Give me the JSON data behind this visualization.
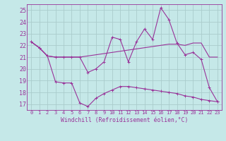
{
  "background_color": "#c5e8e8",
  "grid_color": "#aacccc",
  "line_color": "#993399",
  "xlabel": "Windchill (Refroidissement éolien,°C)",
  "ylim": [
    16.5,
    25.5
  ],
  "xlim": [
    -0.5,
    23.5
  ],
  "yticks": [
    17,
    18,
    19,
    20,
    21,
    22,
    23,
    24,
    25
  ],
  "xticks": [
    0,
    1,
    2,
    3,
    4,
    5,
    6,
    7,
    8,
    9,
    10,
    11,
    12,
    13,
    14,
    15,
    16,
    17,
    18,
    19,
    20,
    21,
    22,
    23
  ],
  "series1_x": [
    0,
    1,
    2,
    3,
    4,
    5,
    6,
    7,
    8,
    9,
    10,
    11,
    12,
    13,
    14,
    15,
    16,
    17,
    18,
    19,
    20,
    21,
    22,
    23
  ],
  "series1_y": [
    22.3,
    21.8,
    21.1,
    21.0,
    21.0,
    21.0,
    21.0,
    21.1,
    21.2,
    21.3,
    21.4,
    21.5,
    21.6,
    21.7,
    21.8,
    21.9,
    22.0,
    22.1,
    22.1,
    22.0,
    22.2,
    22.2,
    21.0,
    21.0
  ],
  "series2_x": [
    0,
    1,
    2,
    3,
    4,
    5,
    6,
    7,
    8,
    9,
    10,
    11,
    12,
    13,
    14,
    15,
    16,
    17,
    18,
    19,
    20,
    21,
    22,
    23
  ],
  "series2_y": [
    22.3,
    21.8,
    21.1,
    21.0,
    21.0,
    21.0,
    21.0,
    19.7,
    20.0,
    20.6,
    22.7,
    22.5,
    20.6,
    22.3,
    23.4,
    22.5,
    25.2,
    24.2,
    22.2,
    21.2,
    21.4,
    20.8,
    18.4,
    17.2
  ],
  "series3_x": [
    0,
    1,
    2,
    3,
    4,
    5,
    6,
    7,
    8,
    9,
    10,
    11,
    12,
    13,
    14,
    15,
    16,
    17,
    18,
    19,
    20,
    21,
    22,
    23
  ],
  "series3_y": [
    22.3,
    21.8,
    21.1,
    18.9,
    18.8,
    18.8,
    17.1,
    16.8,
    17.5,
    17.9,
    18.2,
    18.5,
    18.5,
    18.4,
    18.3,
    18.2,
    18.1,
    18.0,
    17.9,
    17.7,
    17.6,
    17.4,
    17.3,
    17.2
  ]
}
